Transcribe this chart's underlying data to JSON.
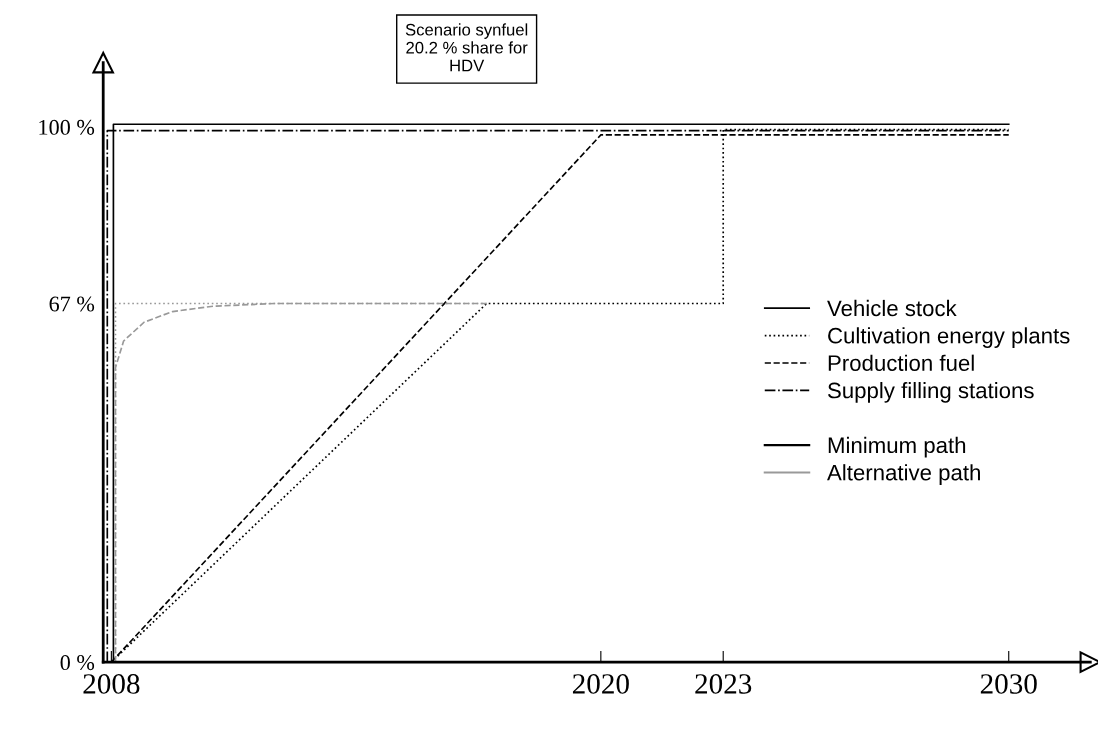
{
  "chart_data": {
    "type": "line",
    "title": "Scenario synfuel\n20.2 % share for\nHDV",
    "xlim": [
      2007.8,
      2032
    ],
    "ylim": [
      0,
      112
    ],
    "xticks": [
      2008,
      2020,
      2023,
      2030
    ],
    "yticks": [
      {
        "value": 0,
        "label": "0 %"
      },
      {
        "value": 67,
        "label": "67 %"
      },
      {
        "value": 100,
        "label": "100 %"
      }
    ],
    "series": [
      {
        "name": "Vehicle stock",
        "color": "#000000",
        "line_style": "solid",
        "x": [
          2008.05,
          2008.05,
          2030
        ],
        "values": [
          0,
          100.5,
          100.5
        ]
      },
      {
        "name": "Cultivation energy plants",
        "color": "#000000",
        "line_style": "dotted",
        "x": [
          2008,
          2017.2,
          2023,
          2023,
          2030
        ],
        "values": [
          0,
          67,
          67,
          99.5,
          99.5
        ]
      },
      {
        "name": "Production fuel",
        "color": "#000000",
        "line_style": "dashed",
        "x": [
          2008,
          2020,
          2030
        ],
        "values": [
          0,
          98.5,
          98.5
        ]
      },
      {
        "name": "Supply filling stations",
        "color": "#000000",
        "line_style": "dashdot",
        "x": [
          2007.9,
          2007.9,
          2030
        ],
        "values": [
          0,
          99.3,
          99.3
        ]
      },
      {
        "color": "#999999",
        "line_style": "dotted",
        "x": [
          2008.1,
          2008.1,
          2017.2
        ],
        "values": [
          0,
          67,
          67
        ]
      },
      {
        "color": "#999999",
        "line_style": "dashed",
        "x": [
          2008.1,
          2008.1,
          2008.3,
          2008.8,
          2009.5,
          2010.5,
          2012,
          2017.2
        ],
        "values": [
          0,
          55,
          60,
          63.5,
          65.5,
          66.5,
          67,
          67
        ]
      }
    ],
    "annotations": [
      "Minimum path",
      "Alternative path"
    ],
    "legend": "right",
    "grid": false
  }
}
